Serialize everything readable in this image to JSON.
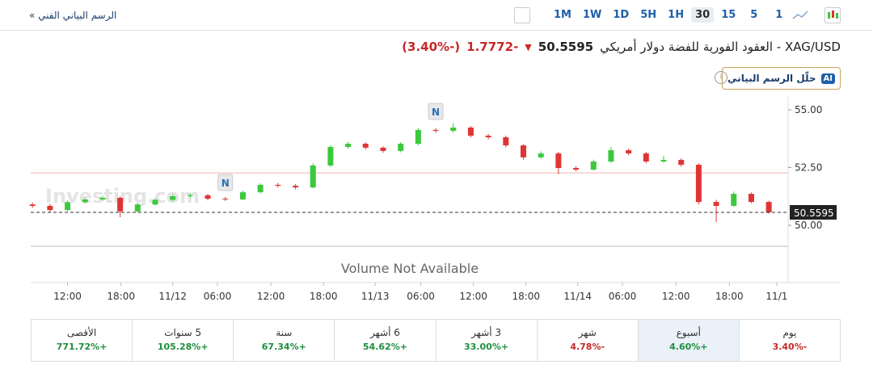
{
  "toolbar": {
    "link": "الرسم البياني الفني »",
    "intervals": [
      "1M",
      "1W",
      "1D",
      "5H",
      "1H",
      "30",
      "15",
      "5",
      "1"
    ],
    "active_interval": "30"
  },
  "header": {
    "title": "XAG/USD - العقود الفورية للفضة دولار أمريكي",
    "price": "50.5595",
    "change": "-1.7772",
    "change_pct": "(-3.40%)"
  },
  "ai_button": {
    "badge": "AI",
    "label": "حلّل الرسم البياني"
  },
  "chart_data": {
    "type": "candlestick",
    "watermark": "Investing.com",
    "volume_note": "Volume Not Available",
    "news_label": "N",
    "news_x": [
      18,
      42
    ],
    "x": [
      -4,
      -2,
      0,
      2,
      4,
      6,
      8,
      10,
      12,
      14,
      16,
      18,
      20,
      22,
      24,
      26,
      28,
      30,
      32,
      34,
      36,
      38,
      40,
      42,
      44,
      46,
      48,
      50,
      52,
      54,
      56,
      58,
      60,
      62,
      64,
      66,
      68,
      70,
      72,
      74,
      76,
      78,
      80
    ],
    "open": [
      50.9,
      50.84,
      50.66,
      51.0,
      51.12,
      51.19,
      50.6,
      50.9,
      51.1,
      51.26,
      51.3,
      51.15,
      51.12,
      51.43,
      51.75,
      51.71,
      51.64,
      52.59,
      53.39,
      53.53,
      53.36,
      53.22,
      53.53,
      54.13,
      54.09,
      54.23,
      53.88,
      53.81,
      53.46,
      52.94,
      53.11,
      52.48,
      52.41,
      52.76,
      53.25,
      53.11,
      52.76,
      52.83,
      52.62,
      51.01,
      50.84,
      51.36,
      51.01
    ],
    "high": [
      50.98,
      50.92,
      51.08,
      51.2,
      51.27,
      51.25,
      50.98,
      51.17,
      51.33,
      51.38,
      51.36,
      51.22,
      51.5,
      51.82,
      51.83,
      51.78,
      52.68,
      53.47,
      53.62,
      53.6,
      53.42,
      53.6,
      54.22,
      54.2,
      54.42,
      54.3,
      53.96,
      53.88,
      53.52,
      53.2,
      53.18,
      52.56,
      52.84,
      53.4,
      53.32,
      53.18,
      53.0,
      52.9,
      52.68,
      51.1,
      51.46,
      51.42,
      51.06
    ],
    "low": [
      50.76,
      50.58,
      50.6,
      50.94,
      51.05,
      50.35,
      50.55,
      50.85,
      51.04,
      51.2,
      51.08,
      51.05,
      51.08,
      51.38,
      51.64,
      51.56,
      51.6,
      52.52,
      53.32,
      53.28,
      53.14,
      53.16,
      53.46,
      54.0,
      54.02,
      53.8,
      53.72,
      53.38,
      52.84,
      52.88,
      52.22,
      52.34,
      52.36,
      52.7,
      53.04,
      52.68,
      52.7,
      52.54,
      50.9,
      50.14,
      50.8,
      50.95,
      50.5
    ],
    "close": [
      50.84,
      50.66,
      51.0,
      51.12,
      51.19,
      50.6,
      50.9,
      51.1,
      51.26,
      51.3,
      51.15,
      51.12,
      51.43,
      51.75,
      51.71,
      51.64,
      52.59,
      53.39,
      53.53,
      53.36,
      53.22,
      53.53,
      54.13,
      54.09,
      54.23,
      53.88,
      53.81,
      53.46,
      52.94,
      53.11,
      52.48,
      52.41,
      52.76,
      53.25,
      53.11,
      52.76,
      52.83,
      52.62,
      51.01,
      50.84,
      51.36,
      51.01,
      50.56
    ],
    "up_color": "#3cc83c",
    "down_color": "#e03434",
    "last_price": 50.5595,
    "reference_line": 52.27,
    "xlim": [
      -4.2,
      82.2
    ],
    "ylim": [
      49.09,
      55.28
    ],
    "yticks": [
      {
        "value": 50,
        "label": "50.00"
      },
      {
        "value": 52.5,
        "label": "52.50"
      },
      {
        "value": 55,
        "label": "55.00"
      }
    ],
    "xticks": [
      {
        "value": 0,
        "label": "12:00"
      },
      {
        "value": 6.1,
        "label": "18:00"
      },
      {
        "value": 12,
        "label": "11/12"
      },
      {
        "value": 17.1,
        "label": "06:00"
      },
      {
        "value": 23.2,
        "label": "12:00"
      },
      {
        "value": 29.2,
        "label": "18:00"
      },
      {
        "value": 35.1,
        "label": "11/13"
      },
      {
        "value": 40.3,
        "label": "06:00"
      },
      {
        "value": 46.3,
        "label": "12:00"
      },
      {
        "value": 52.3,
        "label": "18:00"
      },
      {
        "value": 58.2,
        "label": "11/14"
      },
      {
        "value": 63.3,
        "label": "06:00"
      },
      {
        "value": 69.4,
        "label": "12:00"
      },
      {
        "value": 75.5,
        "label": "18:00"
      },
      {
        "value": 80.9,
        "label": "11/1"
      }
    ]
  },
  "performance": [
    {
      "period": "يوم",
      "change": "-3.40%"
    },
    {
      "period": "أسبوع",
      "change": "+4.60%"
    },
    {
      "period": "شهر",
      "change": "-4.78%"
    },
    {
      "period": "3 أشهر",
      "change": "+33.00%"
    },
    {
      "period": "6 أشهر",
      "change": "+54.62%"
    },
    {
      "period": "سنة",
      "change": "+67.34%"
    },
    {
      "period": "5 سنوات",
      "change": "+105.28%"
    },
    {
      "period": "الأقصى",
      "change": "+771.72%"
    }
  ],
  "highlighted_period": "أسبوع"
}
